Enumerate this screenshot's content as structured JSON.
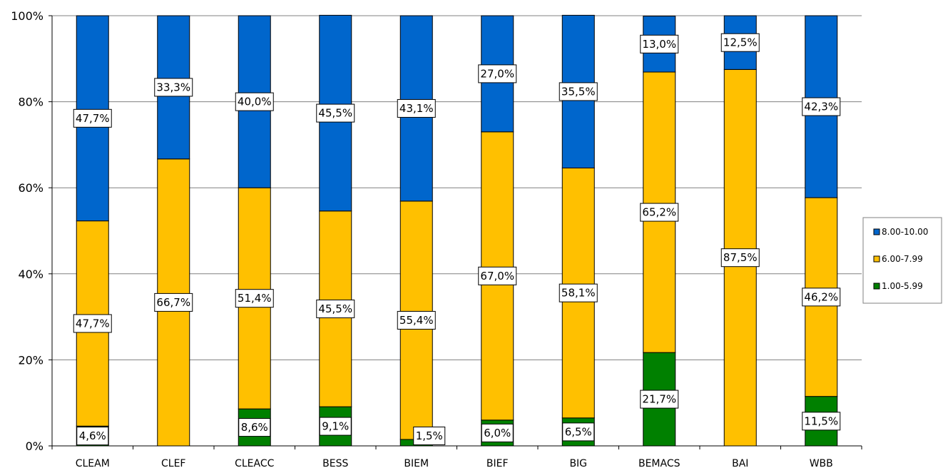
{
  "chart_data": {
    "type": "bar",
    "stacked": true,
    "percent": true,
    "categories": [
      "CLEAM",
      "CLEF",
      "CLEACC",
      "BESS",
      "BIEM",
      "BIEF",
      "BIG",
      "BEMACS",
      "BAI",
      "WBB"
    ],
    "series": [
      {
        "name": "1.00-5.99",
        "color": "#008000",
        "values": [
          4.6,
          0,
          8.6,
          9.1,
          1.5,
          6.0,
          6.5,
          21.7,
          0,
          11.5
        ],
        "labels": [
          "4,6%",
          "",
          "8,6%",
          "9,1%",
          "1,5%",
          "6,0%",
          "6,5%",
          "21,7%",
          "",
          "11,5%"
        ]
      },
      {
        "name": "6.00-7.99",
        "color": "#FFC000",
        "values": [
          47.7,
          66.7,
          51.4,
          45.5,
          55.4,
          67.0,
          58.1,
          65.2,
          87.5,
          46.2
        ],
        "labels": [
          "47,7%",
          "66,7%",
          "51,4%",
          "45,5%",
          "55,4%",
          "67,0%",
          "58,1%",
          "65,2%",
          "87,5%",
          "46,2%"
        ]
      },
      {
        "name": "8.00-10.00",
        "color": "#0066CC",
        "values": [
          47.7,
          33.3,
          40.0,
          45.5,
          43.1,
          27.0,
          35.5,
          13.0,
          12.5,
          42.3
        ],
        "labels": [
          "47,7%",
          "33,3%",
          "40,0%",
          "45,5%",
          "43,1%",
          "27,0%",
          "35,5%",
          "13,0%",
          "12,5%",
          "42,3%"
        ]
      }
    ],
    "ylim": [
      0,
      100
    ],
    "yticks": [
      "0%",
      "20%",
      "40%",
      "60%",
      "80%",
      "100%"
    ],
    "grid": true,
    "legend": {
      "placement": "right",
      "order": [
        "8.00-10.00",
        "6.00-7.99",
        "1.00-5.99"
      ]
    },
    "title": "",
    "xlabel": "",
    "ylabel": ""
  }
}
